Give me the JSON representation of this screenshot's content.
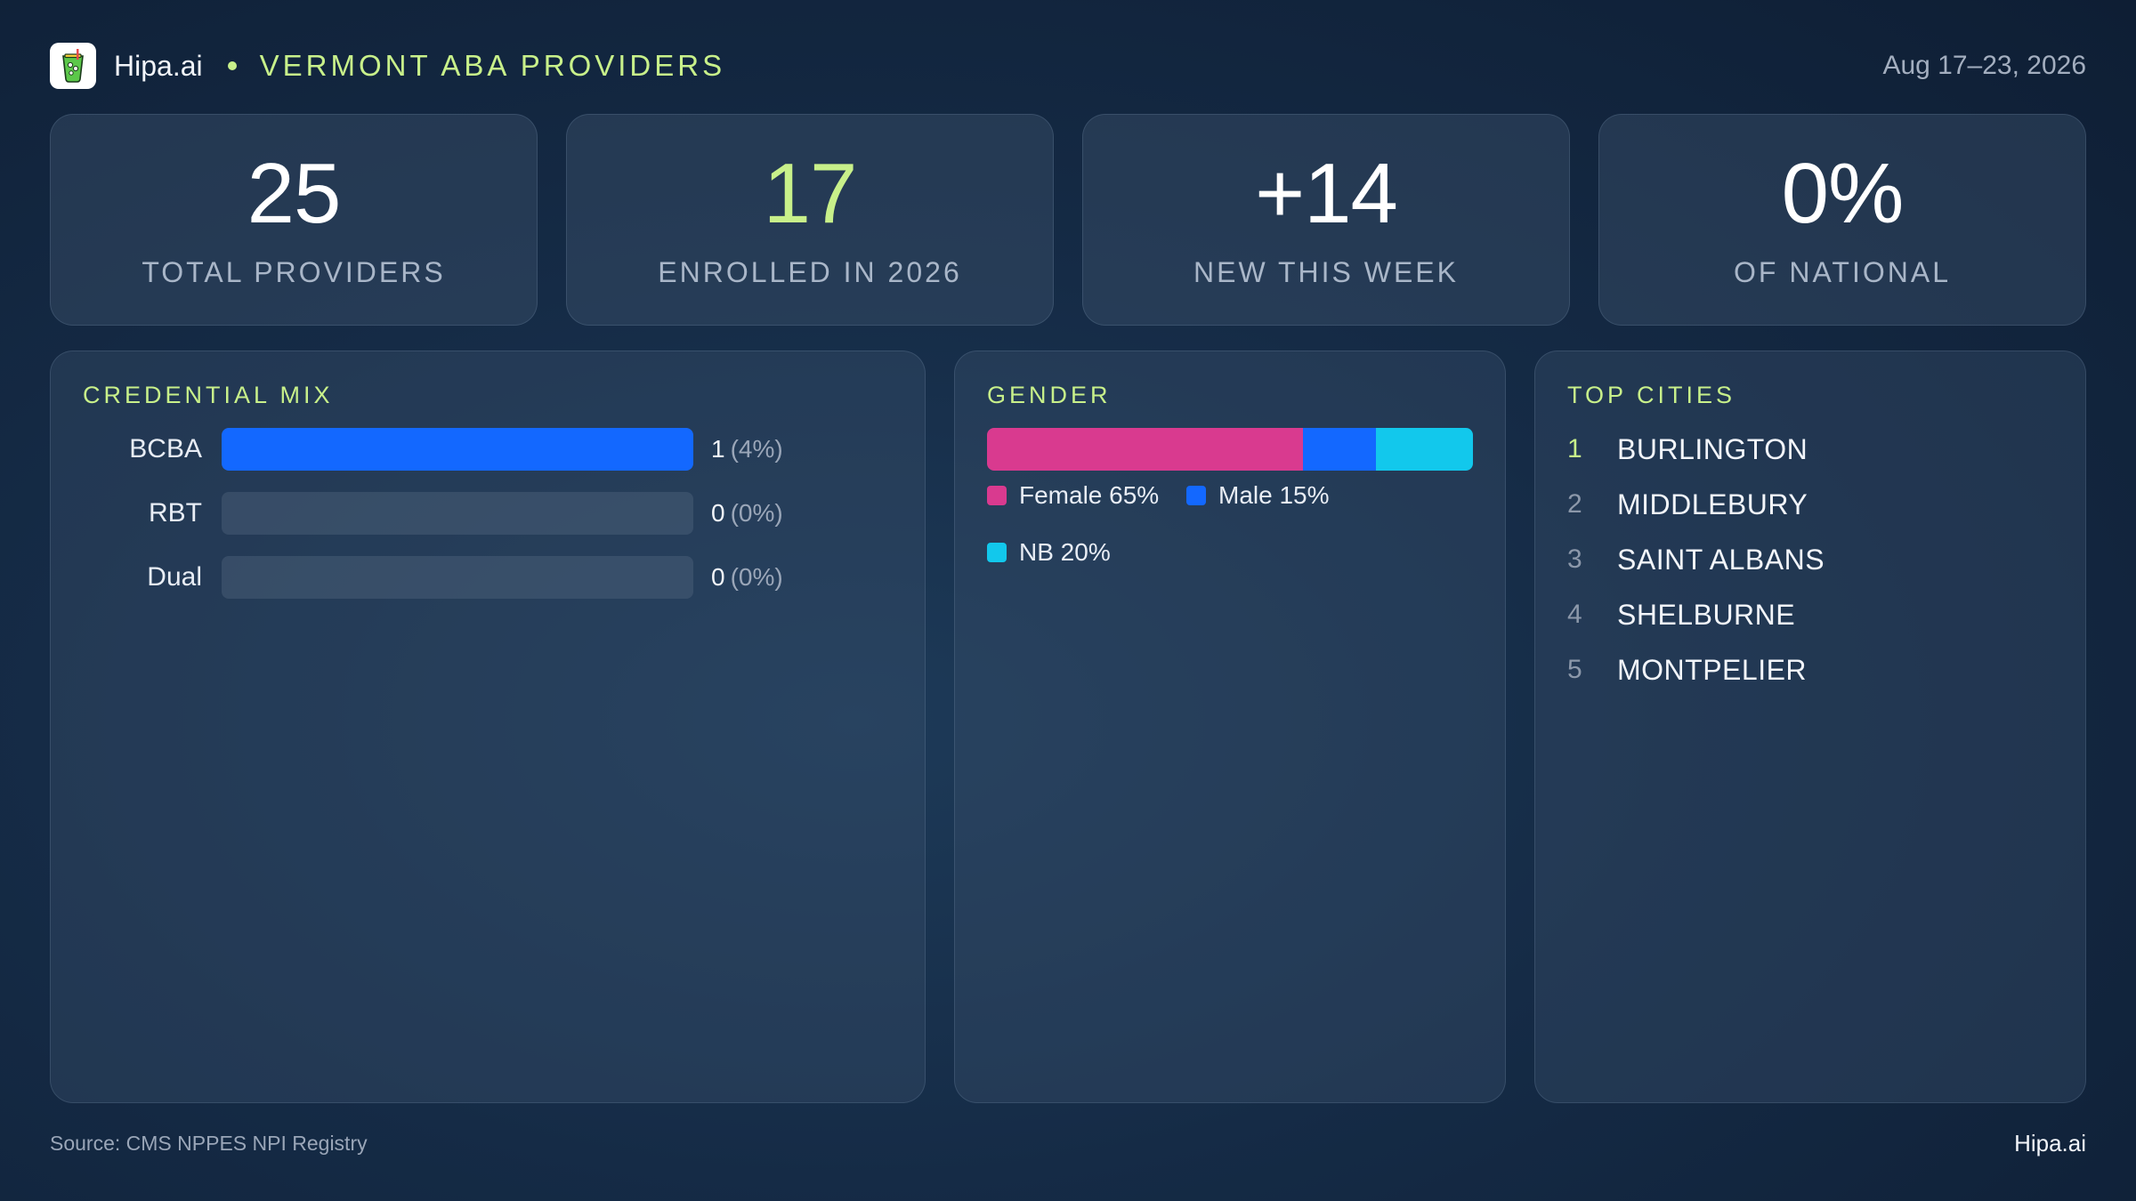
{
  "header": {
    "brand": "Hipa.ai",
    "title": "VERMONT ABA PROVIDERS",
    "date_range": "Aug 17–23, 2026",
    "logo_icon": "cocktail-glass-icon"
  },
  "kpis": [
    {
      "value": "25",
      "label": "TOTAL PROVIDERS"
    },
    {
      "value": "17",
      "label": "ENROLLED IN 2026"
    },
    {
      "value": "+14",
      "label": "NEW THIS WEEK"
    },
    {
      "value": "0%",
      "label": "OF NATIONAL"
    }
  ],
  "credential_mix": {
    "title": "CREDENTIAL MIX",
    "rows": [
      {
        "label": "BCBA",
        "count": "1",
        "pct": "(4%)",
        "fill": 1.0
      },
      {
        "label": "RBT",
        "count": "0",
        "pct": "(0%)",
        "fill": 0.0
      },
      {
        "label": "Dual",
        "count": "0",
        "pct": "(0%)",
        "fill": 0.0
      }
    ]
  },
  "gender": {
    "title": "GENDER",
    "segments": [
      {
        "label": "Female 65%",
        "value": 65,
        "color": "#d93a8f"
      },
      {
        "label": "Male 15%",
        "value": 15,
        "color": "#1368ff"
      },
      {
        "label": "NB 20%",
        "value": 20,
        "color": "#12c8ec"
      }
    ]
  },
  "top_cities": {
    "title": "TOP CITIES",
    "items": [
      {
        "rank": "1",
        "name": "BURLINGTON"
      },
      {
        "rank": "2",
        "name": "MIDDLEBURY"
      },
      {
        "rank": "3",
        "name": "SAINT ALBANS"
      },
      {
        "rank": "4",
        "name": "SHELBURNE"
      },
      {
        "rank": "5",
        "name": "MONTPELIER"
      }
    ]
  },
  "colors": {
    "accent": "#c8f08a",
    "bar_blue": "#1368ff",
    "rank_first": "#c8f08a",
    "rank_other": "#8c98aa"
  },
  "footer": {
    "source": "Source: CMS NPPES NPI Registry",
    "brand": "Hipa.ai"
  }
}
